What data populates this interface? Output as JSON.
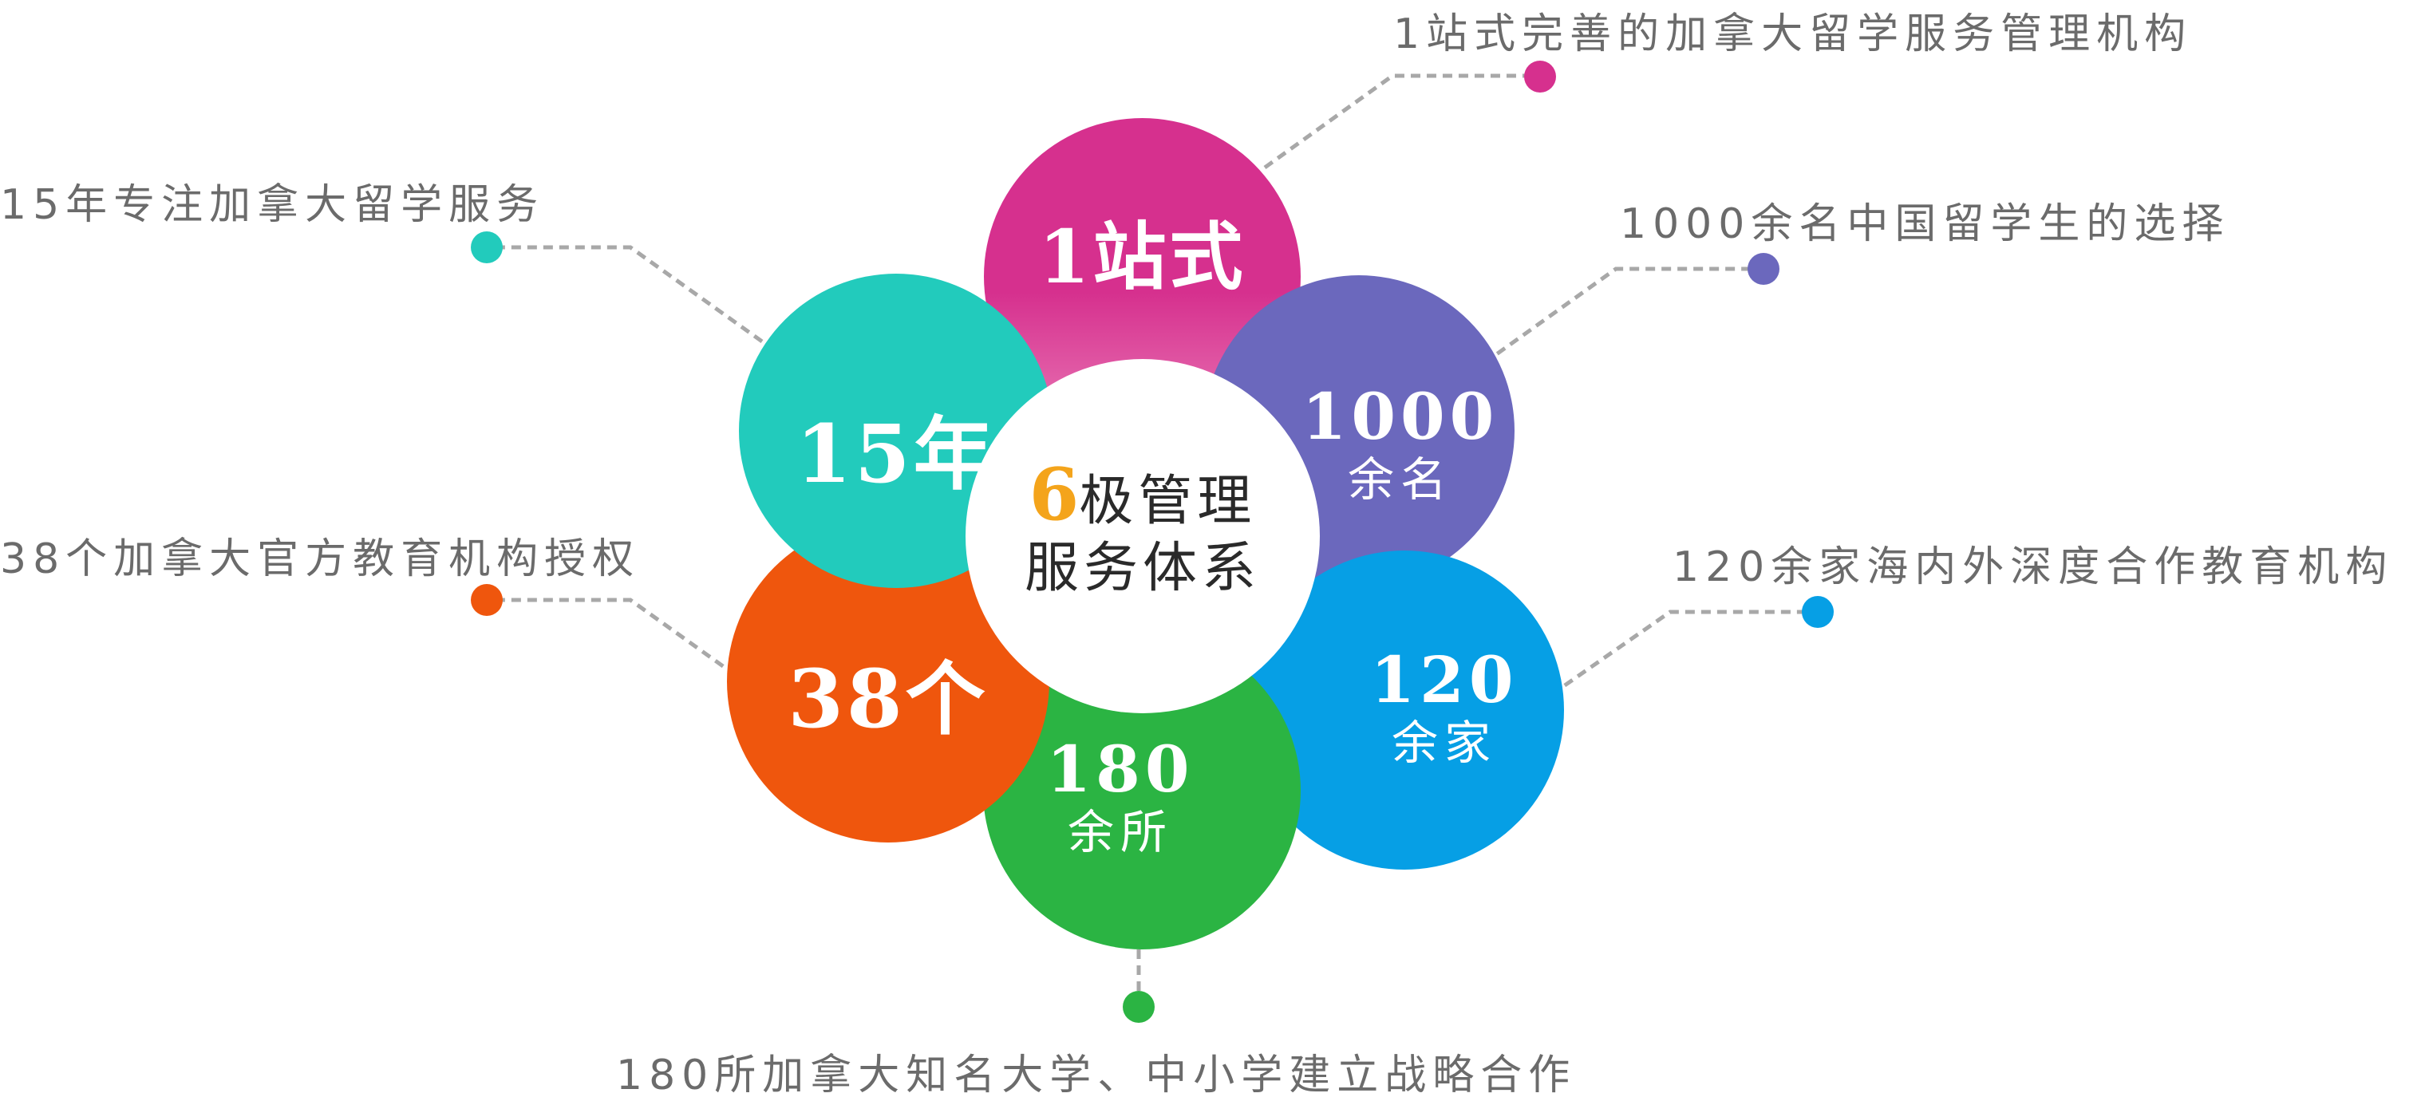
{
  "center": {
    "digit": "6",
    "line1_rest": "极管理",
    "line2": "服务体系"
  },
  "petals": {
    "top": {
      "main": "1站式",
      "sub": "",
      "color_a": "#d6308e",
      "color_b": "#e6509f"
    },
    "upper_left": {
      "main": "15年",
      "sub": "",
      "color": "#22cbbc"
    },
    "upper_right": {
      "main": "1000",
      "sub": "余名",
      "color": "#6b68bd"
    },
    "lower_left": {
      "main": "38个",
      "sub": "",
      "color": "#ef560d"
    },
    "lower_right": {
      "main": "120",
      "sub": "余家",
      "color": "#069fe5"
    },
    "bottom": {
      "main": "180",
      "sub": "余所",
      "color": "#2bb443"
    }
  },
  "callouts": {
    "top": "1站式完善的加拿大留学服务管理机构",
    "upper_left": "15年专注加拿大留学服务",
    "upper_right": "1000余名中国留学生的选择",
    "lower_left": "38个加拿大官方教育机构授权",
    "lower_right": "120余家海内外深度合作教育机构",
    "bottom": "180所加拿大知名大学、中小学建立战略合作"
  },
  "connector_color": "#a8a8a8"
}
